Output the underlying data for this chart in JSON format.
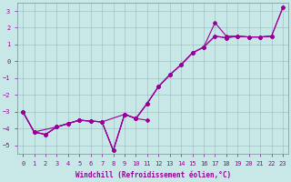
{
  "xlabel": "Windchill (Refroidissement éolien,°C)",
  "bg_color": "#c8e8e8",
  "line_color": "#990099",
  "grid_color": "#99bbbb",
  "xlim": [
    -0.5,
    23.5
  ],
  "ylim": [
    -5.5,
    3.5
  ],
  "yticks": [
    -5,
    -4,
    -3,
    -2,
    -1,
    0,
    1,
    2,
    3
  ],
  "xticks": [
    0,
    1,
    2,
    3,
    4,
    5,
    6,
    7,
    8,
    9,
    10,
    11,
    12,
    13,
    14,
    15,
    16,
    17,
    18,
    19,
    20,
    21,
    22,
    23
  ],
  "series": [
    {
      "x": [
        0,
        1,
        2,
        3,
        4,
        5,
        6,
        7,
        8,
        9,
        10,
        11,
        12,
        13,
        14,
        15,
        16,
        17,
        18,
        19,
        20,
        21,
        22,
        23
      ],
      "y": [
        -3.0,
        -4.2,
        -4.35,
        -3.9,
        -3.7,
        -3.5,
        -3.55,
        -3.6,
        -5.3,
        -3.15,
        -3.4,
        -2.5,
        -1.5,
        -0.8,
        -0.2,
        0.5,
        0.85,
        2.3,
        1.5,
        1.5,
        1.45,
        1.45,
        1.5,
        3.2
      ]
    },
    {
      "x": [
        0,
        1,
        2,
        3,
        4,
        5,
        6,
        7,
        8,
        9,
        10,
        11,
        12,
        13,
        14,
        15,
        16,
        17,
        18,
        19,
        20,
        21,
        22,
        23
      ],
      "y": [
        -3.0,
        -4.2,
        -4.35,
        -3.9,
        -3.7,
        -3.5,
        -3.55,
        -3.6,
        -5.3,
        -3.15,
        -3.4,
        -2.5,
        -1.5,
        -0.8,
        -0.2,
        0.5,
        0.85,
        1.5,
        1.4,
        1.5,
        1.45,
        1.45,
        1.5,
        3.2
      ]
    },
    {
      "x": [
        0,
        1,
        2,
        3,
        4,
        5,
        6,
        7,
        9,
        10,
        11,
        12,
        13,
        14,
        15,
        16,
        17,
        18,
        19,
        20,
        21,
        22
      ],
      "y": [
        -3.0,
        -4.2,
        -4.35,
        -3.9,
        -3.7,
        -3.5,
        -3.55,
        -3.6,
        -3.15,
        -3.4,
        -2.5,
        -1.5,
        -0.8,
        -0.2,
        0.5,
        0.85,
        1.5,
        1.4,
        1.5,
        1.45,
        1.45,
        1.5
      ]
    },
    {
      "x": [
        0,
        1,
        3,
        4,
        5,
        6,
        7,
        8,
        9,
        10,
        11
      ],
      "y": [
        -3.0,
        -4.2,
        -3.9,
        -3.7,
        -3.5,
        -3.55,
        -3.6,
        -5.3,
        -3.15,
        -3.4,
        -3.5
      ]
    }
  ],
  "linewidth": 0.8,
  "markersize": 2.0,
  "ticklabel_fontsize": 5.0,
  "xlabel_fontsize": 5.5
}
